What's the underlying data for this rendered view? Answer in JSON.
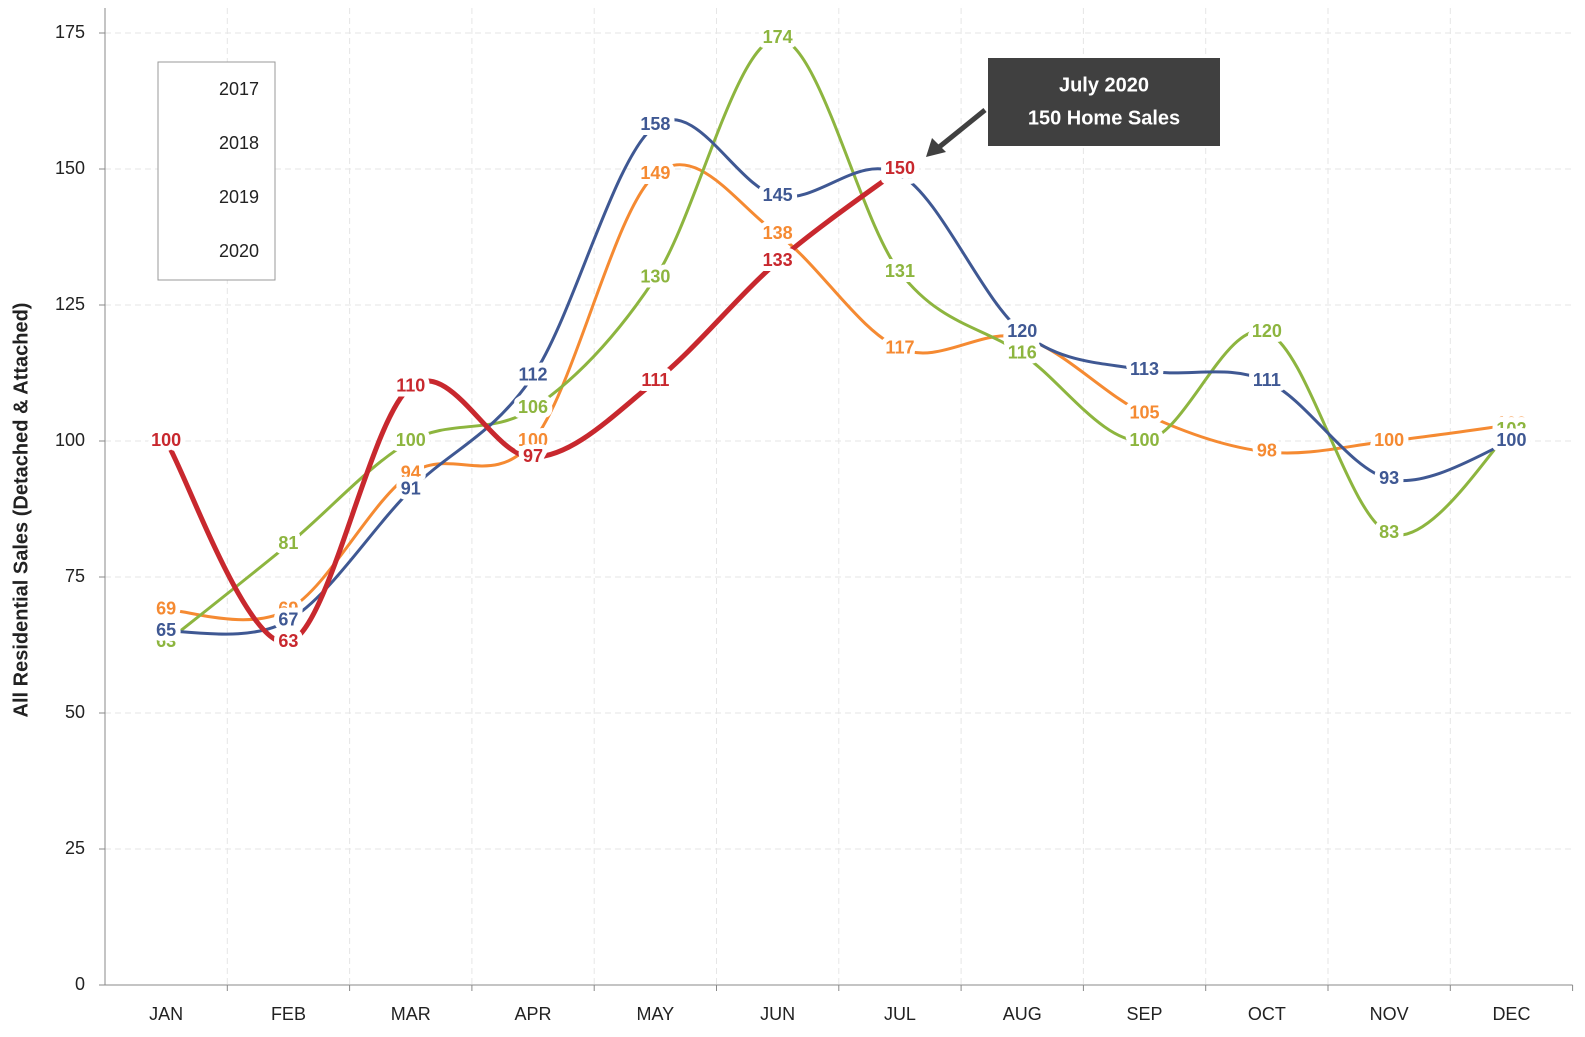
{
  "chart_data": {
    "type": "line",
    "y_label": "All Residential Sales (Detached & Attached)",
    "categories": [
      "JAN",
      "FEB",
      "MAR",
      "APR",
      "MAY",
      "JUN",
      "JUL",
      "AUG",
      "SEP",
      "OCT",
      "NOV",
      "DEC"
    ],
    "series": [
      {
        "name": "2017",
        "color": "#f58a32",
        "values": [
          69,
          69,
          94,
          100,
          149,
          138,
          117,
          119,
          105,
          98,
          100,
          103
        ]
      },
      {
        "name": "2018",
        "color": "#8db53f",
        "values": [
          63,
          81,
          100,
          106,
          130,
          174,
          131,
          116,
          100,
          120,
          83,
          102
        ]
      },
      {
        "name": "2019",
        "color": "#3f5893",
        "values": [
          65,
          67,
          91,
          112,
          158,
          145,
          149,
          120,
          113,
          111,
          93,
          100
        ]
      },
      {
        "name": "2020",
        "color": "#c8282e",
        "values": [
          100,
          63,
          110,
          97,
          111,
          133,
          150,
          null,
          null,
          null,
          null,
          null
        ]
      }
    ],
    "ylim": [
      0,
      175
    ],
    "yticks": [
      0,
      25,
      50,
      75,
      100,
      125,
      150,
      175
    ],
    "grid": true,
    "legend": "upper left",
    "annotation": [
      "July 2020",
      "150 Home Sales"
    ]
  }
}
